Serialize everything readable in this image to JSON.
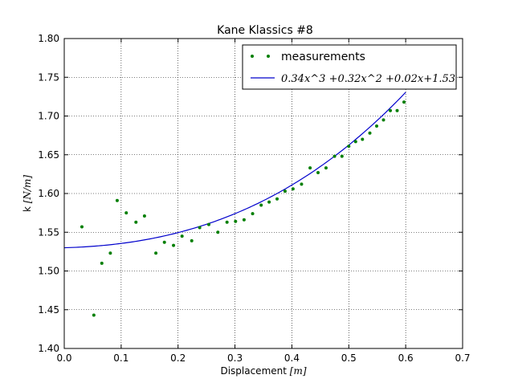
{
  "chart_data": {
    "type": "scatter",
    "title": "Kane Klassics #8",
    "xlabel": "Displacement",
    "xlabel_unit": "[m]",
    "ylabel": "k",
    "ylabel_unit": "[N/m]",
    "xlim": [
      0.0,
      0.7
    ],
    "ylim": [
      1.4,
      1.8
    ],
    "xticks": [
      "0.0",
      "0.1",
      "0.2",
      "0.3",
      "0.4",
      "0.5",
      "0.6",
      "0.7"
    ],
    "yticks": [
      "1.40",
      "1.45",
      "1.50",
      "1.55",
      "1.60",
      "1.65",
      "1.70",
      "1.75",
      "1.80"
    ],
    "grid": true,
    "legend_position": "top-right",
    "series": [
      {
        "name": "measurements",
        "kind": "scatter",
        "color": "#007f00",
        "x": [
          0.031,
          0.052,
          0.066,
          0.081,
          0.093,
          0.109,
          0.126,
          0.141,
          0.161,
          0.176,
          0.192,
          0.207,
          0.224,
          0.238,
          0.254,
          0.27,
          0.286,
          0.301,
          0.316,
          0.331,
          0.346,
          0.36,
          0.374,
          0.388,
          0.402,
          0.417,
          0.432,
          0.446,
          0.46,
          0.475,
          0.488,
          0.5,
          0.512,
          0.524,
          0.537,
          0.549,
          0.561,
          0.573,
          0.585,
          0.597
        ],
        "y": [
          1.557,
          1.443,
          1.51,
          1.523,
          1.591,
          1.575,
          1.563,
          1.571,
          1.523,
          1.537,
          1.533,
          1.545,
          1.539,
          1.556,
          1.56,
          1.55,
          1.563,
          1.564,
          1.566,
          1.574,
          1.585,
          1.589,
          1.593,
          1.603,
          1.606,
          1.612,
          1.633,
          1.627,
          1.633,
          1.648,
          1.648,
          1.661,
          1.667,
          1.67,
          1.678,
          1.687,
          1.695,
          1.707,
          1.707,
          1.718
        ]
      },
      {
        "name": "0.34x^3 +0.32x^2 +0.02x+1.53",
        "kind": "line",
        "color": "#0000cc",
        "coefficients": [
          0.34,
          0.32,
          0.02,
          1.53
        ],
        "x_range": [
          0.0,
          0.6
        ]
      }
    ]
  }
}
